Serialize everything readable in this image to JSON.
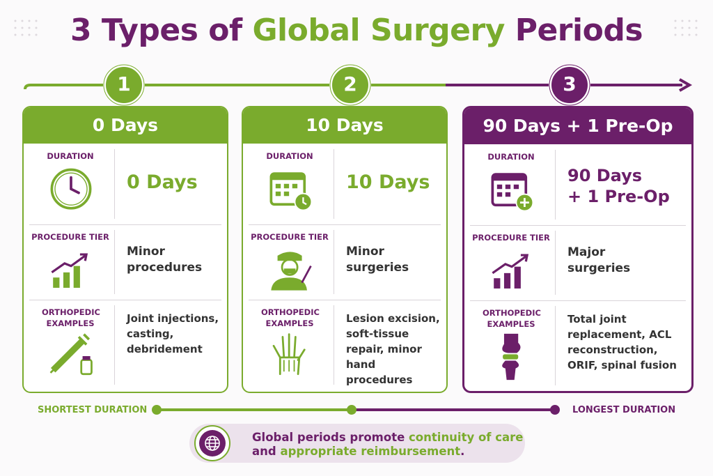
{
  "title": [
    "3 Types of",
    "Global Surgery",
    "Periods"
  ],
  "cards": [
    {
      "number": "1",
      "header": "0 Days",
      "duration_label": "DURATION",
      "duration": [
        "0 Days"
      ],
      "tier_label": "PROCEDURE TIER",
      "tier": "Minor procedures",
      "examples_label": "ORTHOPEDIC EXAMPLES",
      "examples": "Joint injections, casting, debridement"
    },
    {
      "number": "2",
      "header": "10 Days",
      "duration_label": "DURATION",
      "duration": [
        "10 Days"
      ],
      "tier_label": "PROCEDURE TIER",
      "tier": "Minor surgeries",
      "examples_label": "ORTHOPEDIC EXAMPLES",
      "examples": "Lesion excision, soft-tissue repair, minor hand procedures"
    },
    {
      "number": "3",
      "header": "90 Days + 1 Pre-Op",
      "duration_label": "DURATION",
      "duration": [
        "90 Days",
        "+ 1 Pre-Op"
      ],
      "tier_label": "PROCEDURE TIER",
      "tier": "Major surgeries",
      "examples_label": "ORTHOPEDIC EXAMPLES",
      "examples": "Total joint replacement, ACL reconstruction, ORIF, spinal fusion"
    }
  ],
  "scale": {
    "left": "SHORTEST DURATION",
    "right": "LONGEST DURATION"
  },
  "banner": [
    "Global periods promote",
    "continuity of care",
    "and",
    "appropriate reimbursement",
    "."
  ]
}
